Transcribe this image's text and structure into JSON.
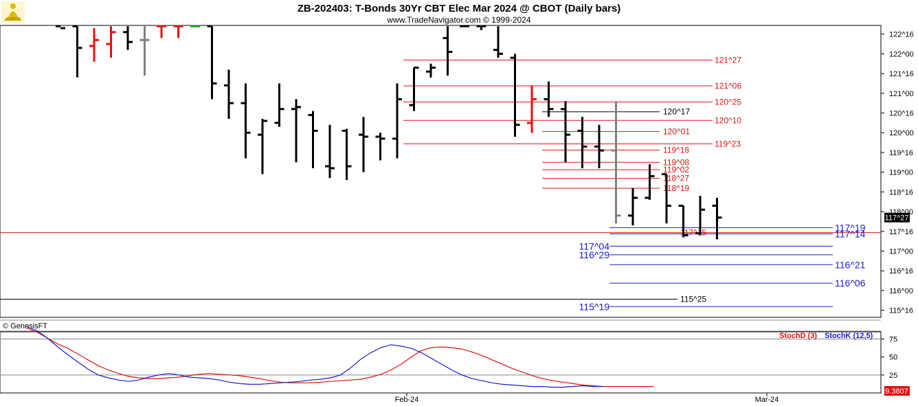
{
  "header": {
    "title": "ZB-202403:  T-Bonds 30Yr CBT Elec Mar 2024 @ CBOT  (Daily bars)",
    "subtitle": "www.TradeNavigator.com © 1999-2024",
    "logo_icon": "lamp-logo-icon"
  },
  "footer": {
    "copyright": "© GenesisFT"
  },
  "chart_data": [
    {
      "type": "ohlc",
      "price_unit": "points (fractional ticks shown as 32nds, e.g. 121^27)",
      "ylim": [
        115.3,
        122.7
      ],
      "y_tick_labels": [
        "122^16",
        "122^00",
        "121^16",
        "121^00",
        "120^16",
        "120^00",
        "119^16",
        "119^00",
        "118^16",
        "118^00",
        "117^16",
        "117^00",
        "116^16",
        "116^00",
        "115^16"
      ],
      "x_tick_labels": [
        "Feb-24",
        "Mar-24"
      ],
      "last_price_label": "117^27",
      "bars": [
        {
          "o": 122.7,
          "h": 122.7,
          "l": 122.7,
          "c": 122.65,
          "color": "black"
        },
        {
          "o": 122.7,
          "h": 122.7,
          "l": 121.4,
          "c": 122.15,
          "color": "black"
        },
        {
          "o": 122.2,
          "h": 122.65,
          "l": 121.8,
          "c": 122.35,
          "color": "red"
        },
        {
          "o": 122.25,
          "h": 122.7,
          "l": 121.9,
          "c": 122.55,
          "color": "red"
        },
        {
          "o": 122.55,
          "h": 122.7,
          "l": 122.1,
          "c": 122.3,
          "color": "black"
        },
        {
          "o": 122.35,
          "h": 122.7,
          "l": 121.45,
          "c": 122.35,
          "color": "gray"
        },
        {
          "o": 122.7,
          "h": 122.7,
          "l": 122.4,
          "c": 122.7,
          "color": "red"
        },
        {
          "o": 122.7,
          "h": 122.7,
          "l": 122.4,
          "c": 122.7,
          "color": "red"
        },
        {
          "o": 122.7,
          "h": 122.7,
          "l": 122.7,
          "c": 122.7,
          "color": "green"
        },
        {
          "o": 122.7,
          "h": 122.7,
          "l": 120.85,
          "c": 121.25,
          "color": "black"
        },
        {
          "o": 121.2,
          "h": 121.6,
          "l": 120.35,
          "c": 120.75,
          "color": "black"
        },
        {
          "o": 120.75,
          "h": 121.25,
          "l": 119.35,
          "c": 120.0,
          "color": "black"
        },
        {
          "o": 119.95,
          "h": 120.35,
          "l": 118.95,
          "c": 120.3,
          "color": "black"
        },
        {
          "o": 120.25,
          "h": 121.25,
          "l": 120.15,
          "c": 120.6,
          "color": "black"
        },
        {
          "o": 120.6,
          "h": 120.85,
          "l": 119.25,
          "c": 120.65,
          "color": "black"
        },
        {
          "o": 120.45,
          "h": 120.55,
          "l": 119.1,
          "c": 120.05,
          "color": "black"
        },
        {
          "o": 119.15,
          "h": 120.2,
          "l": 118.85,
          "c": 119.1,
          "color": "black"
        },
        {
          "o": 120.05,
          "h": 120.1,
          "l": 118.8,
          "c": 119.15,
          "color": "black"
        },
        {
          "o": 119.95,
          "h": 120.4,
          "l": 119.0,
          "c": 119.9,
          "color": "black"
        },
        {
          "o": 119.9,
          "h": 120.0,
          "l": 119.3,
          "c": 119.85,
          "color": "black"
        },
        {
          "o": 119.85,
          "h": 121.25,
          "l": 119.35,
          "c": 120.85,
          "color": "black"
        },
        {
          "o": 120.7,
          "h": 121.65,
          "l": 120.55,
          "c": 121.65,
          "color": "black"
        },
        {
          "o": 121.55,
          "h": 121.75,
          "l": 121.4,
          "c": 121.65,
          "color": "black"
        },
        {
          "o": 122.4,
          "h": 122.7,
          "l": 121.45,
          "c": 122.05,
          "color": "black"
        },
        {
          "o": 122.7,
          "h": 122.7,
          "l": 122.7,
          "c": 122.7,
          "color": "black"
        },
        {
          "o": 122.7,
          "h": 122.7,
          "l": 122.6,
          "c": 122.7,
          "color": "black"
        },
        {
          "o": 122.1,
          "h": 122.7,
          "l": 121.9,
          "c": 122.0,
          "color": "black"
        },
        {
          "o": 121.9,
          "h": 122.0,
          "l": 119.9,
          "c": 120.2,
          "color": "black"
        },
        {
          "o": 120.25,
          "h": 121.2,
          "l": 120.0,
          "c": 120.85,
          "color": "red"
        },
        {
          "o": 120.85,
          "h": 121.3,
          "l": 120.4,
          "c": 120.6,
          "color": "black"
        },
        {
          "o": 120.6,
          "h": 120.8,
          "l": 119.25,
          "c": 119.95,
          "color": "black"
        },
        {
          "o": 120.05,
          "h": 120.4,
          "l": 119.1,
          "c": 119.65,
          "color": "black"
        },
        {
          "o": 119.65,
          "h": 120.2,
          "l": 119.1,
          "c": 119.55,
          "color": "black"
        },
        {
          "o": 119.55,
          "h": 120.8,
          "l": 117.7,
          "c": 117.9,
          "color": "gray"
        },
        {
          "o": 117.9,
          "h": 118.6,
          "l": 117.65,
          "c": 118.35,
          "color": "black"
        },
        {
          "o": 118.35,
          "h": 119.2,
          "l": 118.3,
          "c": 118.9,
          "color": "black"
        },
        {
          "o": 118.95,
          "h": 118.95,
          "l": 117.7,
          "c": 118.15,
          "color": "black"
        },
        {
          "o": 118.15,
          "h": 118.15,
          "l": 117.35,
          "c": 117.4,
          "color": "black"
        },
        {
          "o": 117.45,
          "h": 118.4,
          "l": 117.4,
          "c": 118.05,
          "color": "black"
        },
        {
          "o": 118.15,
          "h": 118.35,
          "l": 117.3,
          "c": 117.85,
          "color": "black"
        }
      ],
      "levels": [
        {
          "label": "121^27",
          "value": 121.8438,
          "color": "red"
        },
        {
          "label": "121^06",
          "value": 121.1875,
          "color": "red"
        },
        {
          "label": "120^25",
          "value": 120.7813,
          "color": "red"
        },
        {
          "label": "120^17",
          "value": 120.5313,
          "color": "black"
        },
        {
          "label": "120^10",
          "value": 120.3125,
          "color": "red"
        },
        {
          "label": "120^01",
          "value": 120.0313,
          "color": "red"
        },
        {
          "label": "119^23",
          "value": 119.7188,
          "color": "red"
        },
        {
          "label": "119^18",
          "value": 119.5625,
          "color": "red"
        },
        {
          "label": "119^08",
          "value": 119.25,
          "color": "red"
        },
        {
          "label": "119^02",
          "value": 119.0625,
          "color": "red"
        },
        {
          "label": "118^27",
          "value": 118.8438,
          "color": "red"
        },
        {
          "label": "118^19",
          "value": 118.5938,
          "color": "red"
        },
        {
          "label": "117^19",
          "value": 117.5938,
          "color": "blue"
        },
        {
          "label": "117^15",
          "value": 117.4688,
          "color": "red"
        },
        {
          "label": "117^14",
          "value": 117.4375,
          "color": "blue"
        },
        {
          "label": "117^04",
          "value": 117.125,
          "color": "blue"
        },
        {
          "label": "116^29",
          "value": 116.9063,
          "color": "blue"
        },
        {
          "label": "116^21",
          "value": 116.6563,
          "color": "blue"
        },
        {
          "label": "116^06",
          "value": 116.1875,
          "color": "blue"
        },
        {
          "label": "115^25",
          "value": 115.7813,
          "color": "black"
        },
        {
          "label": "115^19",
          "value": 115.5938,
          "color": "blue"
        }
      ]
    },
    {
      "type": "line",
      "ylim": [
        0,
        85
      ],
      "y_tick_labels": [
        "75",
        "50",
        "25"
      ],
      "reference_lines": [
        75,
        25
      ],
      "last_value_label": "9.3807",
      "series": [
        {
          "name": "StochD (3)",
          "color": "#e01010",
          "values": [
            90,
            84,
            76,
            68,
            62,
            54,
            46,
            38,
            32,
            27,
            23,
            21,
            20,
            20,
            21,
            22,
            24,
            26,
            27,
            26,
            25,
            24,
            22,
            20,
            17,
            15,
            14,
            14,
            14,
            15,
            16,
            17,
            18,
            19,
            22,
            26,
            32,
            40,
            50,
            59,
            63,
            64,
            63,
            61,
            57,
            52,
            46,
            40,
            34,
            29,
            24,
            20,
            17,
            15,
            13,
            11,
            10,
            9,
            9,
            9,
            9,
            9,
            9
          ]
        },
        {
          "name": "StochK (12,5)",
          "color": "#1a1ad0",
          "values": [
            92,
            86,
            76,
            64,
            53,
            43,
            33,
            25,
            21,
            18,
            16,
            18,
            22,
            25,
            27,
            25,
            22,
            21,
            20,
            18,
            15,
            13,
            12,
            12,
            13,
            14,
            15,
            16,
            18,
            19,
            21,
            25,
            35,
            47,
            56,
            63,
            67,
            65,
            62,
            56,
            48,
            40,
            32,
            25,
            20,
            17,
            14,
            12,
            11,
            10,
            9,
            9,
            8,
            8,
            9,
            10,
            9,
            9
          ]
        }
      ]
    }
  ]
}
